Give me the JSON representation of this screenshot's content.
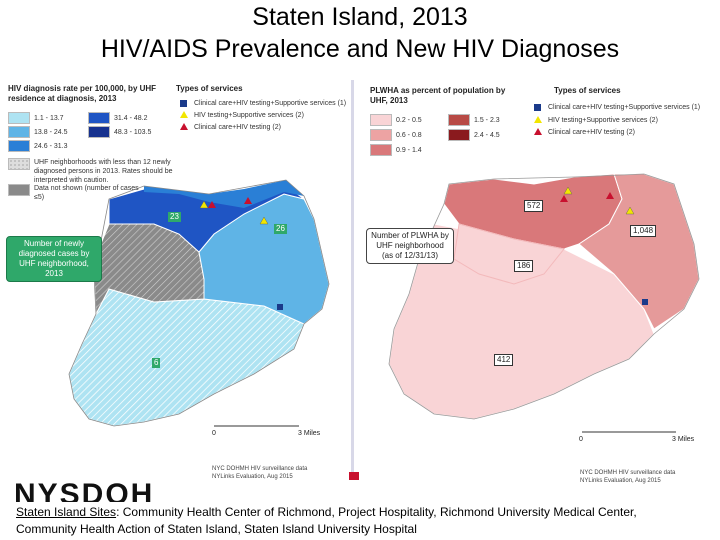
{
  "title": {
    "line1": "Staten Island, 2013",
    "line2": "HIV/AIDS Prevalence and New HIV Diagnoses"
  },
  "left_map": {
    "legend_title": "HIV diagnosis rate per 100,000, by UHF residence at diagnosis, 2013",
    "ranges": [
      {
        "label": "1.1 - 13.7",
        "color": "#aee3f2"
      },
      {
        "label": "13.8 - 24.5",
        "color": "#5fb4e6"
      },
      {
        "label": "24.6 - 31.3",
        "color": "#2a7fd6"
      },
      {
        "label": "31.4 - 48.2",
        "color": "#1f55c4"
      },
      {
        "label": "48.3 - 103.5",
        "color": "#17328f"
      }
    ],
    "low_count_note": "UHF neighborhoods with less than 12 newly diagnosed persons in 2013. Rates should be interpreted with caution.",
    "not_shown_note": "Data not shown (number of cases ≤5)",
    "services_title": "Types of services",
    "services": [
      {
        "label": "Clinical care+HIV testing+Supportive services (1)",
        "icon": "square-icon"
      },
      {
        "label": "HIV testing+Supportive services (2)",
        "icon": "yellow-triangle-icon"
      },
      {
        "label": "Clinical care+HIV testing (2)",
        "icon": "red-triangle-icon"
      }
    ],
    "callout": "Number of newly diagnosed cases by UHF neighborhood, 2013",
    "labels": {
      "north_west": "23",
      "north_east": "26",
      "south": "6"
    },
    "scale_start": "0",
    "scale_end": "3 Miles",
    "source1": "NYC DOHMH HIV surveillance data",
    "source2": "NYLinks Evaluation, Aug 2015"
  },
  "right_map": {
    "legend_title": "PLWHA as percent of population by UHF, 2013",
    "ranges": [
      {
        "label": "0.2 - 0.5",
        "color": "#f9d4d6"
      },
      {
        "label": "0.6 - 0.8",
        "color": "#eda3a3"
      },
      {
        "label": "0.9 - 1.4",
        "color": "#d9787a"
      },
      {
        "label": "1.5 - 2.3",
        "color": "#b84a45"
      },
      {
        "label": "2.4 - 4.5",
        "color": "#8a1a1e"
      }
    ],
    "services_title": "Types of services",
    "services": [
      {
        "label": "Clinical care+HIV testing+Supportive services (1)",
        "icon": "square-icon"
      },
      {
        "label": "HIV testing+Supportive services (2)",
        "icon": "yellow-triangle-icon"
      },
      {
        "label": "Clinical care+HIV testing (2)",
        "icon": "red-triangle-icon"
      }
    ],
    "callout": "Number of PLWHA by UHF neighborhood (as of 12/31/13)",
    "labels": {
      "north_west": "572",
      "north_east": "1,048",
      "mid": "186",
      "south": "412"
    },
    "scale_start": "0",
    "scale_end": "3 Miles",
    "source1": "NYC DOHMH HIV surveillance data",
    "source2": "NYLinks Evaluation, Aug 2015"
  },
  "bottom_note": {
    "label": "Staten Island Sites",
    "text": ": Community Health Center of Richmond, Project Hospitality, Richmond University Medical Center, Community Health Action of Staten Island, Staten Island University Hospital"
  },
  "background_text": "NYSDOH"
}
